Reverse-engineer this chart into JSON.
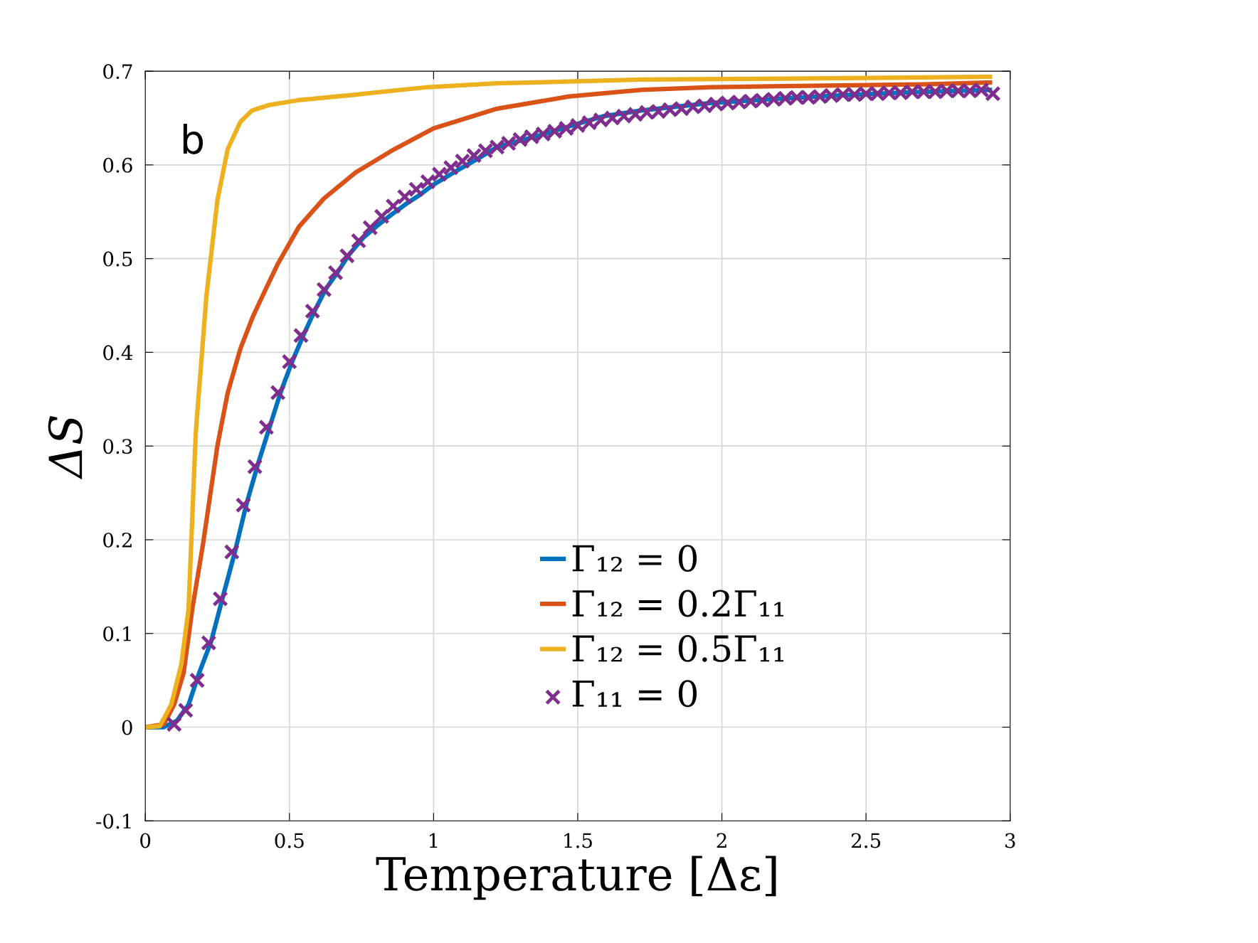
{
  "chart_data": {
    "type": "line",
    "xlabel": "Temperature [Δε]",
    "ylabel": "ΔS",
    "annotations": [
      "b"
    ],
    "xlim": [
      0,
      3
    ],
    "ylim": [
      -0.1,
      0.7
    ],
    "xticks": [
      0,
      0.5,
      1,
      1.5,
      2,
      2.5,
      3
    ],
    "yticks": [
      {
        "value": -0.1,
        "label": "-0.1"
      },
      0,
      0.1,
      0.2,
      0.3,
      0.4,
      0.5,
      0.6,
      0.7
    ],
    "grid": true,
    "legend": "lower center",
    "line_style": "solid",
    "series": [
      {
        "name": "Γ₁₂ = 0",
        "color": "#0072bd",
        "x": [
          0,
          0.064,
          0.11,
          0.15,
          0.187,
          0.229,
          0.269,
          0.31,
          0.35,
          0.39,
          0.43,
          0.469,
          0.508,
          0.548,
          0.587,
          0.627,
          0.666,
          0.706,
          0.755,
          0.804,
          0.854,
          0.903,
          0.952,
          1.0,
          1.076,
          1.15,
          1.22,
          1.35,
          1.47,
          1.59,
          1.72,
          1.96,
          2.21,
          2.46,
          2.7,
          2.93
        ],
        "values": [
          0,
          0,
          0.007,
          0.024,
          0.058,
          0.092,
          0.139,
          0.186,
          0.237,
          0.28,
          0.319,
          0.357,
          0.389,
          0.418,
          0.444,
          0.468,
          0.485,
          0.504,
          0.522,
          0.535,
          0.547,
          0.558,
          0.568,
          0.579,
          0.593,
          0.606,
          0.619,
          0.63,
          0.641,
          0.652,
          0.658,
          0.666,
          0.671,
          0.675,
          0.678,
          0.68
        ]
      },
      {
        "name": "Γ₁₂ = 0.2Γ₁₁",
        "color": "#d95319",
        "x": [
          0,
          0.064,
          0.1,
          0.133,
          0.163,
          0.2,
          0.25,
          0.286,
          0.33,
          0.373,
          0.414,
          0.459,
          0.533,
          0.619,
          0.73,
          0.854,
          1.0,
          1.22,
          1.47,
          1.72,
          1.96,
          2.21,
          2.46,
          2.7,
          2.93
        ],
        "values": [
          0,
          0.003,
          0.024,
          0.058,
          0.126,
          0.195,
          0.3,
          0.357,
          0.404,
          0.438,
          0.465,
          0.494,
          0.534,
          0.564,
          0.592,
          0.615,
          0.639,
          0.66,
          0.673,
          0.68,
          0.683,
          0.684,
          0.685,
          0.686,
          0.688
        ]
      },
      {
        "name": "Γ₁₂ = 0.5Γ₁₁",
        "color": "#edb120",
        "x": [
          0,
          0.05,
          0.09,
          0.125,
          0.15,
          0.175,
          0.212,
          0.25,
          0.286,
          0.33,
          0.37,
          0.43,
          0.53,
          0.73,
          0.98,
          1.22,
          1.72,
          2.21,
          2.93
        ],
        "values": [
          0,
          0.001,
          0.024,
          0.067,
          0.126,
          0.314,
          0.46,
          0.562,
          0.617,
          0.646,
          0.658,
          0.664,
          0.669,
          0.675,
          0.683,
          0.687,
          0.691,
          0.692,
          0.694
        ]
      },
      {
        "name": "Γ₁₁ = 0",
        "color": "#7e2f8e",
        "type": "scatter",
        "marker": "cross",
        "x": [
          0.1,
          0.14,
          0.18,
          0.22,
          0.26,
          0.3,
          0.34,
          0.38,
          0.42,
          0.46,
          0.5,
          0.54,
          0.58,
          0.62,
          0.66,
          0.7,
          0.74,
          0.78,
          0.82,
          0.86,
          0.9,
          0.94,
          0.98,
          1.02,
          1.06,
          1.1,
          1.14,
          1.18,
          1.22,
          1.26,
          1.3,
          1.34,
          1.38,
          1.42,
          1.46,
          1.5,
          1.54,
          1.58,
          1.62,
          1.66,
          1.7,
          1.74,
          1.78,
          1.82,
          1.86,
          1.9,
          1.94,
          1.98,
          2.02,
          2.06,
          2.1,
          2.14,
          2.18,
          2.22,
          2.26,
          2.3,
          2.34,
          2.38,
          2.42,
          2.46,
          2.5,
          2.54,
          2.58,
          2.62,
          2.66,
          2.7,
          2.74,
          2.78,
          2.82,
          2.86,
          2.9,
          2.94
        ],
        "values": [
          0.003,
          0.018,
          0.05,
          0.09,
          0.137,
          0.187,
          0.237,
          0.278,
          0.32,
          0.357,
          0.39,
          0.418,
          0.444,
          0.467,
          0.485,
          0.503,
          0.519,
          0.533,
          0.545,
          0.556,
          0.566,
          0.574,
          0.582,
          0.59,
          0.597,
          0.604,
          0.61,
          0.615,
          0.619,
          0.623,
          0.627,
          0.63,
          0.633,
          0.636,
          0.639,
          0.642,
          0.645,
          0.648,
          0.65,
          0.652,
          0.654,
          0.656,
          0.657,
          0.659,
          0.66,
          0.662,
          0.663,
          0.665,
          0.666,
          0.667,
          0.668,
          0.669,
          0.67,
          0.671,
          0.672,
          0.672,
          0.673,
          0.674,
          0.675,
          0.675,
          0.676,
          0.676,
          0.677,
          0.677,
          0.678,
          0.678,
          0.678,
          0.679,
          0.679,
          0.679,
          0.68,
          0.676
        ]
      }
    ]
  }
}
